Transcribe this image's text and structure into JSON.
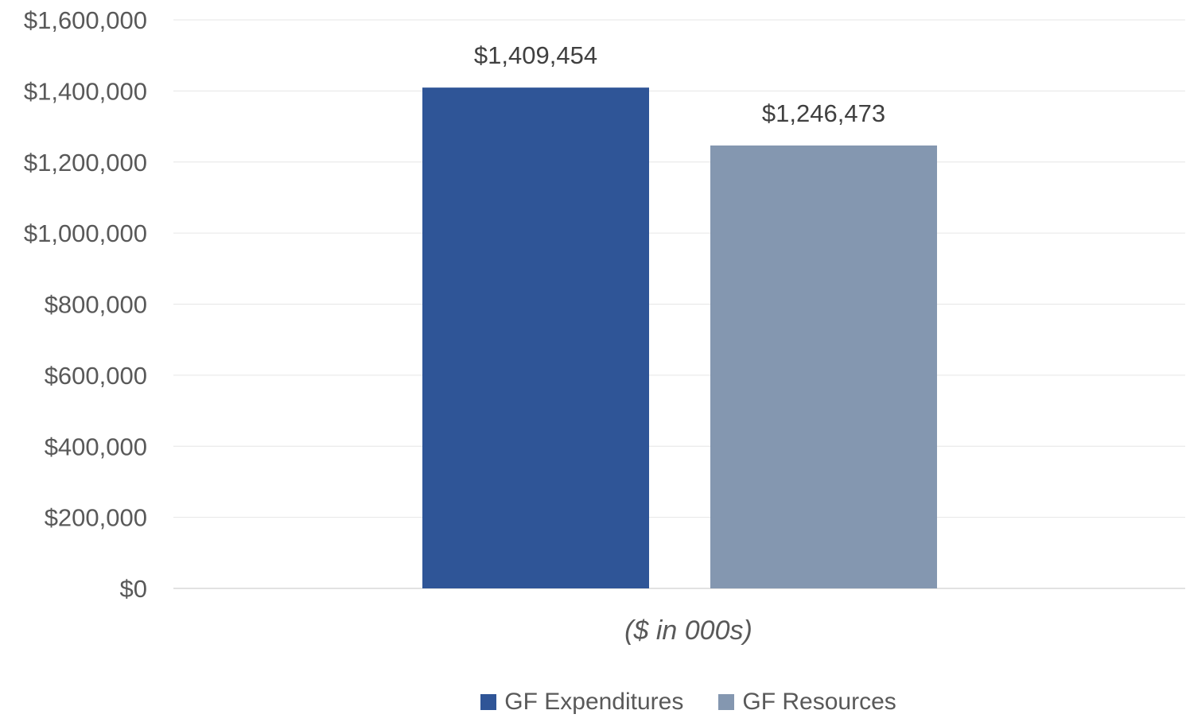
{
  "chart_data": {
    "type": "bar",
    "categories": [
      ""
    ],
    "series": [
      {
        "name": "GF Expenditures",
        "values": [
          1409454
        ],
        "color": "#2f5597",
        "data_label": "$1,409,454"
      },
      {
        "name": "GF Resources",
        "values": [
          1246473
        ],
        "color": "#8497b0",
        "data_label": "$1,246,473"
      }
    ],
    "title": "",
    "xlabel": "($ in 000s)",
    "ylabel": "",
    "ylim": [
      0,
      1600000
    ],
    "yticks": [
      0,
      200000,
      400000,
      600000,
      800000,
      1000000,
      1200000,
      1400000,
      1600000
    ],
    "ytick_labels": [
      "$0",
      "$200,000",
      "$400,000",
      "$600,000",
      "$800,000",
      "$1,000,000",
      "$1,200,000",
      "$1,400,000",
      "$1,600,000"
    ],
    "grid": true,
    "legend_position": "bottom"
  },
  "legend": {
    "items": [
      {
        "label": "GF Expenditures",
        "color": "#2f5597"
      },
      {
        "label": "GF Resources",
        "color": "#8497b0"
      }
    ]
  }
}
